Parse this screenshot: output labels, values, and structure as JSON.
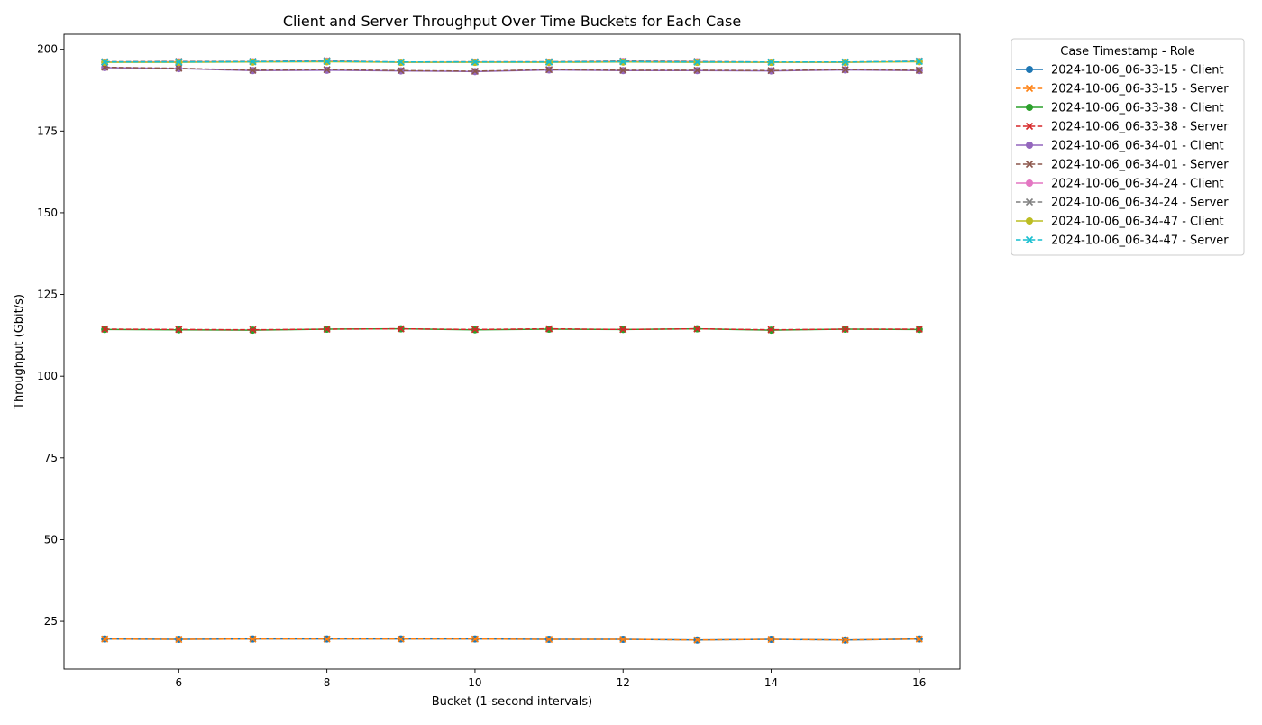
{
  "chart_data": {
    "type": "line",
    "title": "Client and Server Throughput Over Time Buckets for Each Case",
    "xlabel": "Bucket (1-second intervals)",
    "ylabel": "Throughput (Gbit/s)",
    "x": [
      5,
      6,
      7,
      8,
      9,
      10,
      11,
      12,
      13,
      14,
      15,
      16
    ],
    "xlim": [
      4.45,
      16.55
    ],
    "ylim": [
      10.4,
      204.6
    ],
    "xticks": [
      6,
      8,
      10,
      12,
      14,
      16
    ],
    "yticks": [
      25,
      50,
      75,
      100,
      125,
      150,
      175,
      200
    ],
    "grid": false,
    "legend": {
      "title": "Case Timestamp - Role",
      "placement": "outside-upper-right"
    },
    "series": [
      {
        "name": "2024-10-06_06-33-15 - Client",
        "color": "#1f77b4",
        "linestyle": "solid",
        "marker": "circle",
        "values": [
          19.6,
          19.5,
          19.6,
          19.6,
          19.6,
          19.6,
          19.5,
          19.5,
          19.3,
          19.5,
          19.3,
          19.6
        ]
      },
      {
        "name": "2024-10-06_06-33-15 - Server",
        "color": "#ff7f0e",
        "linestyle": "dashed",
        "marker": "x",
        "values": [
          19.6,
          19.5,
          19.6,
          19.6,
          19.6,
          19.6,
          19.5,
          19.5,
          19.3,
          19.5,
          19.3,
          19.6
        ]
      },
      {
        "name": "2024-10-06_06-33-38 - Client",
        "color": "#2ca02c",
        "linestyle": "solid",
        "marker": "circle",
        "values": [
          114.3,
          114.2,
          114.1,
          114.4,
          114.5,
          114.2,
          114.4,
          114.3,
          114.5,
          114.1,
          114.4,
          114.3
        ]
      },
      {
        "name": "2024-10-06_06-33-38 - Server",
        "color": "#d62728",
        "linestyle": "dashed",
        "marker": "x",
        "values": [
          114.4,
          114.3,
          114.2,
          114.4,
          114.5,
          114.3,
          114.5,
          114.3,
          114.5,
          114.2,
          114.4,
          114.4
        ]
      },
      {
        "name": "2024-10-06_06-34-01 - Client",
        "color": "#9467bd",
        "linestyle": "solid",
        "marker": "circle",
        "values": [
          194.4,
          194.1,
          193.5,
          193.6,
          193.4,
          193.2,
          193.7,
          193.5,
          193.5,
          193.4,
          193.7,
          193.5
        ]
      },
      {
        "name": "2024-10-06_06-34-01 - Server",
        "color": "#8c564b",
        "linestyle": "dashed",
        "marker": "x",
        "values": [
          194.5,
          194.2,
          193.6,
          193.8,
          193.5,
          193.3,
          193.8,
          193.6,
          193.6,
          193.5,
          193.8,
          193.6
        ]
      },
      {
        "name": "2024-10-06_06-34-24 - Client",
        "color": "#e377c2",
        "linestyle": "solid",
        "marker": "circle",
        "values": [
          196.1,
          196.2,
          196.2,
          196.4,
          196.0,
          196.1,
          196.1,
          196.3,
          196.2,
          196.0,
          196.0,
          196.3
        ]
      },
      {
        "name": "2024-10-06_06-34-24 - Server",
        "color": "#7f7f7f",
        "linestyle": "dashed",
        "marker": "x",
        "values": [
          196.2,
          196.3,
          196.3,
          196.5,
          196.1,
          196.2,
          196.2,
          196.4,
          196.3,
          196.1,
          196.1,
          196.4
        ]
      },
      {
        "name": "2024-10-06_06-34-47 - Client",
        "color": "#bcbd22",
        "linestyle": "solid",
        "marker": "circle",
        "values": [
          196.0,
          196.0,
          196.1,
          196.2,
          196.0,
          196.0,
          196.0,
          196.1,
          196.0,
          196.0,
          196.0,
          196.2
        ]
      },
      {
        "name": "2024-10-06_06-34-47 - Server",
        "color": "#17becf",
        "linestyle": "dashed",
        "marker": "x",
        "values": [
          196.1,
          196.1,
          196.2,
          196.3,
          196.1,
          196.1,
          196.1,
          196.2,
          196.1,
          196.1,
          196.1,
          196.3
        ]
      }
    ]
  }
}
